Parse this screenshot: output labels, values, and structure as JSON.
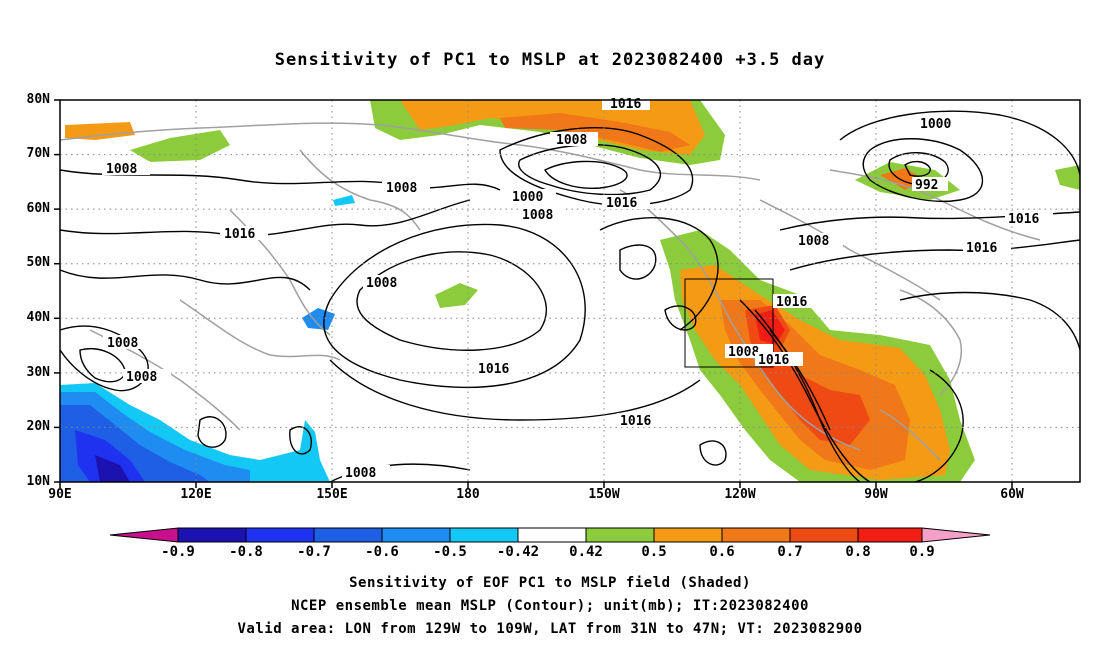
{
  "map": {
    "title": "Sensitivity of PC1 to MSLP at 2023082400 +3.5 day",
    "lat_labels": [
      "80N",
      "70N",
      "60N",
      "50N",
      "40N",
      "30N",
      "20N",
      "10N"
    ],
    "lon_labels": [
      "90E",
      "120E",
      "150E",
      "180",
      "150W",
      "120W",
      "90W",
      "60W"
    ],
    "contour_labels": [
      "1016",
      "1008",
      "1008",
      "1000",
      "1008",
      "1016",
      "1008",
      "1016",
      "1008",
      "1000",
      "992",
      "1016",
      "1008",
      "1016",
      "1016",
      "1016",
      "1008",
      "1008",
      "1008",
      "1016",
      "1016",
      "1016",
      "1008"
    ],
    "box": {
      "lon_from": "129W",
      "lon_to": "109W",
      "lat_from": "31N",
      "lat_to": "47N"
    },
    "colors": {
      "neg_0.9": "#c8108c",
      "neg_0.8": "#1b12b0",
      "neg_0.7": "#1e32f0",
      "neg_0.6": "#1f5fe6",
      "neg_0.5": "#1e8cf0",
      "neg_0.42": "#14c8f5",
      "pos_0.42": "#8ccc3c",
      "pos_0.5": "#f59a14",
      "pos_0.6": "#f07818",
      "pos_0.7": "#f04a14",
      "pos_0.8": "#f01e14",
      "pos_0.9": "#f5a0c8"
    }
  },
  "colorbar": {
    "labels": [
      "-0.9",
      "-0.8",
      "-0.7",
      "-0.6",
      "-0.5",
      "-0.42",
      "0.42",
      "0.5",
      "0.6",
      "0.7",
      "0.8",
      "0.9"
    ]
  },
  "captions": {
    "line1": "Sensitivity of EOF PC1 to MSLP field (Shaded)",
    "line2": "NCEP ensemble mean MSLP (Contour); unit(mb); IT:2023082400",
    "line3": "Valid area: LON from 129W to 109W, LAT from 31N to 47N; VT: 2023082900"
  }
}
